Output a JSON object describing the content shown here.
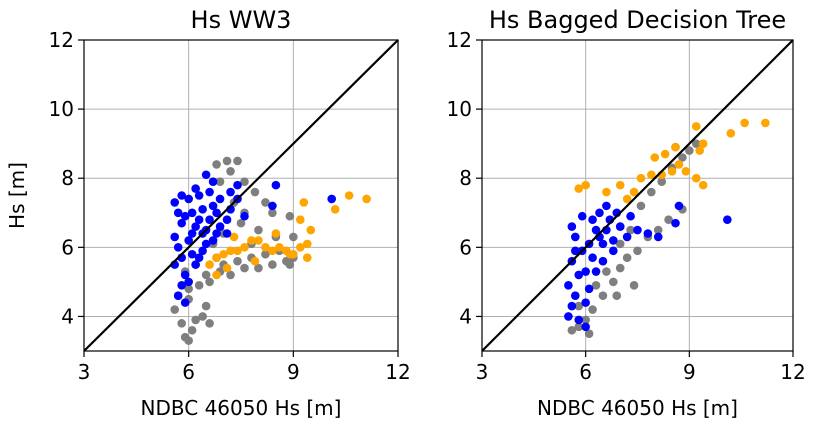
{
  "chart_data": [
    {
      "type": "scatter",
      "title": "Hs WW3",
      "xlabel": "NDBC 46050 Hs [m]",
      "ylabel": "Hs [m]",
      "xlim": [
        3,
        12
      ],
      "ylim": [
        3,
        12
      ],
      "xticks": [
        "3",
        "6",
        "9",
        "12"
      ],
      "yticks": [
        "4",
        "6",
        "8",
        "10",
        "12"
      ],
      "grid": true,
      "reference_line": "y = x",
      "series": [
        {
          "color": "#7f7f7f",
          "points": [
            [
              5.6,
              4.2
            ],
            [
              5.8,
              3.8
            ],
            [
              5.9,
              3.4
            ],
            [
              6.0,
              3.3
            ],
            [
              6.1,
              3.6
            ],
            [
              6.2,
              3.9
            ],
            [
              6.4,
              4.0
            ],
            [
              6.6,
              3.8
            ],
            [
              6.5,
              4.3
            ],
            [
              5.7,
              4.6
            ],
            [
              6.0,
              4.8
            ],
            [
              6.3,
              4.9
            ],
            [
              6.6,
              5.0
            ],
            [
              6.9,
              5.3
            ],
            [
              7.2,
              5.2
            ],
            [
              7.6,
              5.4
            ],
            [
              8.0,
              5.4
            ],
            [
              8.4,
              5.5
            ],
            [
              8.8,
              5.6
            ],
            [
              9.0,
              5.7
            ],
            [
              7.4,
              5.6
            ],
            [
              7.0,
              5.5
            ],
            [
              6.8,
              5.7
            ],
            [
              7.8,
              5.7
            ],
            [
              8.2,
              5.8
            ],
            [
              8.6,
              5.9
            ],
            [
              8.9,
              5.5
            ],
            [
              6.5,
              5.2
            ],
            [
              5.9,
              5.3
            ],
            [
              6.2,
              5.5
            ],
            [
              6.8,
              8.4
            ],
            [
              7.1,
              8.5
            ],
            [
              7.4,
              8.5
            ],
            [
              7.2,
              8.2
            ],
            [
              7.6,
              7.9
            ],
            [
              7.9,
              7.6
            ],
            [
              8.2,
              7.3
            ],
            [
              7.3,
              7.3
            ],
            [
              6.9,
              7.9
            ],
            [
              7.6,
              7.0
            ],
            [
              8.5,
              6.3
            ],
            [
              8.9,
              6.9
            ],
            [
              9.0,
              6.3
            ],
            [
              8.4,
              7.0
            ],
            [
              7.0,
              6.4
            ],
            [
              7.5,
              6.7
            ],
            [
              8.0,
              6.5
            ],
            [
              6.7,
              6.1
            ],
            [
              7.8,
              6.1
            ],
            [
              6.0,
              4.5
            ]
          ]
        },
        {
          "color": "#ffa500",
          "points": [
            [
              6.6,
              5.5
            ],
            [
              6.8,
              5.7
            ],
            [
              7.0,
              5.8
            ],
            [
              7.2,
              5.9
            ],
            [
              7.4,
              5.9
            ],
            [
              7.6,
              6.0
            ],
            [
              7.8,
              6.2
            ],
            [
              8.0,
              6.2
            ],
            [
              8.2,
              6.0
            ],
            [
              8.4,
              5.9
            ],
            [
              8.6,
              6.0
            ],
            [
              8.8,
              5.9
            ],
            [
              9.0,
              5.8
            ],
            [
              9.2,
              6.0
            ],
            [
              9.4,
              5.7
            ],
            [
              9.4,
              6.1
            ],
            [
              9.2,
              6.8
            ],
            [
              9.5,
              6.5
            ],
            [
              9.3,
              7.3
            ],
            [
              10.2,
              7.1
            ],
            [
              10.6,
              7.5
            ],
            [
              11.1,
              7.4
            ],
            [
              7.1,
              5.4
            ],
            [
              7.9,
              5.6
            ],
            [
              8.5,
              6.4
            ],
            [
              6.8,
              5.2
            ],
            [
              7.3,
              6.3
            ],
            [
              8.9,
              5.8
            ]
          ]
        },
        {
          "color": "#0000ff",
          "points": [
            [
              5.6,
              7.3
            ],
            [
              5.7,
              7.0
            ],
            [
              5.8,
              6.7
            ],
            [
              5.6,
              6.3
            ],
            [
              5.7,
              6.0
            ],
            [
              5.8,
              5.7
            ],
            [
              5.6,
              5.5
            ],
            [
              5.9,
              5.2
            ],
            [
              5.8,
              4.9
            ],
            [
              5.7,
              4.6
            ],
            [
              5.9,
              4.4
            ],
            [
              6.0,
              7.4
            ],
            [
              6.1,
              7.0
            ],
            [
              6.2,
              6.6
            ],
            [
              6.0,
              6.2
            ],
            [
              6.1,
              5.8
            ],
            [
              6.2,
              5.5
            ],
            [
              6.0,
              5.0
            ],
            [
              6.3,
              7.5
            ],
            [
              6.4,
              7.1
            ],
            [
              6.3,
              6.8
            ],
            [
              6.4,
              6.4
            ],
            [
              6.5,
              6.1
            ],
            [
              6.3,
              5.7
            ],
            [
              6.6,
              7.6
            ],
            [
              6.7,
              7.2
            ],
            [
              6.6,
              6.8
            ],
            [
              6.5,
              6.5
            ],
            [
              6.7,
              6.2
            ],
            [
              6.8,
              7.0
            ],
            [
              6.9,
              7.4
            ],
            [
              6.9,
              6.6
            ],
            [
              7.1,
              6.8
            ],
            [
              7.2,
              7.1
            ],
            [
              7.4,
              7.4
            ],
            [
              7.6,
              6.9
            ],
            [
              6.5,
              8.1
            ],
            [
              6.7,
              7.9
            ],
            [
              7.2,
              7.6
            ],
            [
              7.4,
              7.8
            ],
            [
              7.1,
              6.4
            ],
            [
              8.5,
              7.8
            ],
            [
              8.4,
              7.2
            ],
            [
              10.1,
              7.4
            ],
            [
              5.9,
              6.9
            ],
            [
              6.2,
              7.7
            ],
            [
              5.8,
              7.5
            ],
            [
              6.1,
              6.4
            ],
            [
              6.4,
              5.9
            ],
            [
              6.8,
              6.4
            ]
          ]
        }
      ]
    },
    {
      "type": "scatter",
      "title": "Hs Bagged Decision Tree",
      "xlabel": "NDBC 46050 Hs [m]",
      "ylabel": "",
      "xlim": [
        3,
        12
      ],
      "ylim": [
        3,
        12
      ],
      "xticks": [
        "3",
        "6",
        "9",
        "12"
      ],
      "yticks": [
        "4",
        "6",
        "8",
        "10",
        "12"
      ],
      "grid": true,
      "reference_line": "y = x",
      "series": [
        {
          "color": "#7f7f7f",
          "points": [
            [
              5.6,
              3.6
            ],
            [
              5.8,
              3.7
            ],
            [
              6.0,
              3.9
            ],
            [
              6.2,
              4.2
            ],
            [
              6.5,
              4.6
            ],
            [
              6.8,
              5.0
            ],
            [
              7.0,
              5.4
            ],
            [
              7.2,
              5.7
            ],
            [
              7.5,
              5.9
            ],
            [
              7.8,
              6.3
            ],
            [
              8.1,
              6.5
            ],
            [
              8.4,
              6.8
            ],
            [
              8.8,
              7.1
            ],
            [
              6.3,
              4.9
            ],
            [
              6.6,
              5.3
            ],
            [
              7.0,
              6.1
            ],
            [
              7.3,
              6.5
            ],
            [
              7.6,
              7.2
            ],
            [
              7.9,
              7.6
            ],
            [
              8.2,
              7.9
            ],
            [
              8.5,
              8.3
            ],
            [
              8.8,
              8.6
            ],
            [
              9.0,
              8.8
            ],
            [
              9.2,
              9.0
            ],
            [
              8.6,
              8.9
            ],
            [
              7.4,
              4.9
            ],
            [
              6.9,
              4.6
            ],
            [
              6.1,
              3.5
            ],
            [
              5.8,
              4.3
            ],
            [
              7.0,
              6.6
            ]
          ]
        },
        {
          "color": "#ffa500",
          "points": [
            [
              5.8,
              7.7
            ],
            [
              6.0,
              7.8
            ],
            [
              6.6,
              7.6
            ],
            [
              7.0,
              7.8
            ],
            [
              7.4,
              7.6
            ],
            [
              7.6,
              8.0
            ],
            [
              7.9,
              8.1
            ],
            [
              8.2,
              8.1
            ],
            [
              8.5,
              8.2
            ],
            [
              8.9,
              8.2
            ],
            [
              9.2,
              8.0
            ],
            [
              9.4,
              7.8
            ],
            [
              8.0,
              8.6
            ],
            [
              8.3,
              8.7
            ],
            [
              8.6,
              8.9
            ],
            [
              9.3,
              8.8
            ],
            [
              9.4,
              9.0
            ],
            [
              9.2,
              9.5
            ],
            [
              10.2,
              9.3
            ],
            [
              10.6,
              9.6
            ],
            [
              11.2,
              9.6
            ],
            [
              7.2,
              7.4
            ],
            [
              8.7,
              8.4
            ]
          ]
        },
        {
          "color": "#0000ff",
          "points": [
            [
              5.5,
              4.0
            ],
            [
              5.6,
              4.3
            ],
            [
              5.7,
              4.6
            ],
            [
              5.5,
              4.9
            ],
            [
              5.8,
              5.2
            ],
            [
              5.6,
              5.6
            ],
            [
              5.9,
              5.9
            ],
            [
              5.7,
              6.3
            ],
            [
              5.6,
              6.6
            ],
            [
              6.0,
              4.4
            ],
            [
              6.1,
              4.8
            ],
            [
              6.0,
              5.3
            ],
            [
              6.2,
              5.7
            ],
            [
              6.1,
              6.1
            ],
            [
              6.3,
              6.5
            ],
            [
              6.2,
              6.8
            ],
            [
              6.4,
              7.0
            ],
            [
              6.5,
              6.1
            ],
            [
              6.6,
              6.5
            ],
            [
              6.7,
              6.8
            ],
            [
              6.8,
              6.2
            ],
            [
              7.0,
              6.6
            ],
            [
              7.2,
              6.3
            ],
            [
              7.5,
              6.5
            ],
            [
              7.8,
              6.4
            ],
            [
              8.1,
              6.3
            ],
            [
              8.6,
              6.7
            ],
            [
              8.7,
              7.2
            ],
            [
              10.1,
              6.8
            ],
            [
              6.0,
              3.7
            ],
            [
              5.8,
              3.9
            ],
            [
              6.3,
              5.3
            ],
            [
              6.5,
              5.6
            ],
            [
              6.9,
              7.0
            ],
            [
              5.9,
              6.9
            ],
            [
              6.4,
              6.3
            ],
            [
              6.6,
              7.2
            ],
            [
              7.3,
              6.9
            ],
            [
              5.7,
              5.9
            ],
            [
              6.8,
              5.9
            ]
          ]
        }
      ]
    }
  ]
}
